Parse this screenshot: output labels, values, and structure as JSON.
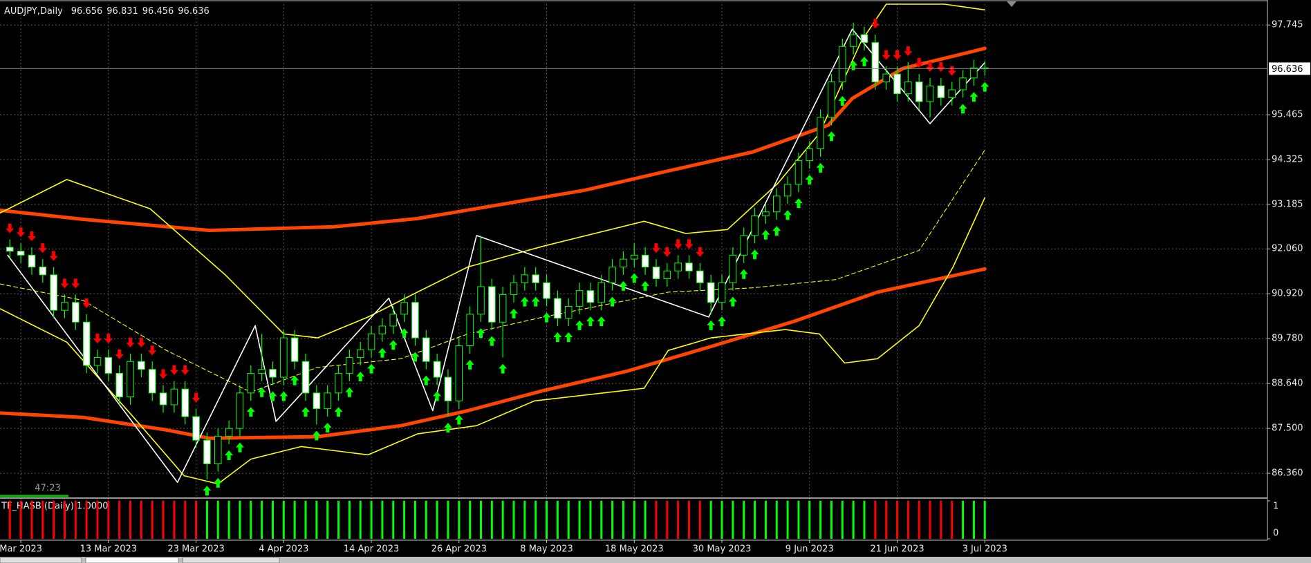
{
  "chart_data": {
    "type": "candlestick",
    "symbol": "AUDJPY,Daily",
    "timer": "47:23",
    "grid": true,
    "xlim": [
      -0.9,
      114.8
    ],
    "xticks": [
      {
        "value": 1,
        "label": "Mar 2023"
      },
      {
        "value": 9,
        "label": "13 Mar 2023"
      },
      {
        "value": 17,
        "label": "23 Mar 2023"
      },
      {
        "value": 25,
        "label": "4 Apr 2023"
      },
      {
        "value": 33,
        "label": "14 Apr 2023"
      },
      {
        "value": 41,
        "label": "26 Apr 2023"
      },
      {
        "value": 49,
        "label": "8 May 2023"
      },
      {
        "value": 57,
        "label": "18 May 2023"
      },
      {
        "value": 65,
        "label": "30 May 2023"
      },
      {
        "value": 73,
        "label": "9 Jun 2023"
      },
      {
        "value": 81,
        "label": "21 Jun 2023"
      },
      {
        "value": 89,
        "label": "3 Jul 2023"
      }
    ],
    "ylim": [
      85.766,
      98.275
    ],
    "yticks": [
      97.745,
      95.465,
      94.325,
      93.185,
      {
        "value": 92.06,
        "label": "92.060"
      },
      {
        "value": 90.92,
        "label": "90.920"
      },
      {
        "value": 89.78,
        "label": "89.780"
      },
      {
        "value": 88.64,
        "label": "88.640"
      },
      {
        "value": 87.5,
        "label": "87.500"
      },
      {
        "value": 86.36,
        "label": "86.360"
      }
    ],
    "candles": {
      "up_color": "#000000",
      "down_color": "#ffffff",
      "wick_color": "#00ff00",
      "open": [
        92.1,
        92.0,
        91.9,
        91.6,
        91.4,
        90.5,
        90.7,
        90.2,
        89.1,
        89.3,
        88.9,
        88.3,
        89.2,
        89.0,
        88.4,
        88.1,
        88.5,
        87.8,
        87.2,
        86.6,
        87.3,
        87.5,
        88.4,
        88.9,
        89.0,
        88.8,
        89.8,
        89.2,
        88.4,
        88.0,
        88.4,
        88.9,
        89.3,
        89.5,
        89.9,
        90.1,
        90.4,
        90.7,
        89.8,
        89.2,
        88.8,
        88.2,
        89.6,
        90.4,
        91.1,
        90.2,
        90.9,
        91.2,
        91.4,
        91.2,
        90.8,
        90.3,
        90.6,
        91.0,
        90.7,
        91.2,
        91.6,
        91.8,
        91.9,
        91.6,
        91.3,
        91.5,
        91.7,
        91.5,
        91.2,
        90.7,
        91.2,
        91.9,
        92.4,
        92.9,
        93.0,
        93.4,
        93.7,
        94.3,
        94.6,
        95.4,
        96.3,
        97.2,
        97.5,
        97.3,
        96.3,
        96.5,
        96.0,
        96.3,
        95.8,
        96.2,
        95.9,
        96.1,
        96.4,
        96.656
      ],
      "high": [
        92.3,
        92.2,
        92.1,
        91.8,
        91.6,
        90.9,
        90.9,
        90.4,
        89.5,
        89.5,
        89.1,
        89.4,
        89.4,
        89.2,
        88.6,
        88.7,
        88.7,
        88.0,
        87.4,
        87.5,
        87.7,
        88.6,
        89.1,
        89.9,
        89.2,
        90.0,
        90.0,
        89.4,
        88.6,
        88.6,
        89.1,
        89.5,
        89.7,
        90.1,
        90.3,
        90.6,
        90.9,
        90.9,
        90.0,
        89.4,
        89.0,
        89.8,
        90.6,
        92.4,
        91.3,
        91.1,
        91.4,
        91.6,
        91.6,
        91.4,
        91.0,
        90.8,
        91.2,
        91.2,
        91.4,
        91.8,
        92.0,
        92.2,
        92.1,
        91.8,
        91.7,
        91.9,
        91.9,
        91.7,
        91.4,
        91.4,
        92.1,
        92.6,
        93.1,
        93.2,
        93.6,
        93.9,
        94.5,
        94.8,
        95.6,
        96.5,
        97.4,
        97.8,
        97.7,
        97.5,
        96.7,
        96.7,
        96.8,
        96.5,
        96.4,
        96.4,
        96.3,
        96.6,
        96.86,
        96.831
      ],
      "low": [
        91.8,
        91.7,
        91.4,
        91.2,
        90.3,
        90.3,
        90.0,
        88.9,
        88.9,
        88.7,
        88.1,
        88.1,
        88.8,
        88.2,
        87.9,
        87.9,
        87.6,
        87.0,
        86.2,
        86.4,
        87.1,
        87.3,
        88.2,
        88.7,
        88.6,
        88.6,
        89.0,
        88.2,
        87.6,
        87.8,
        88.2,
        88.7,
        89.1,
        89.3,
        89.7,
        89.9,
        90.2,
        89.6,
        89.0,
        88.6,
        87.8,
        88.0,
        89.4,
        90.2,
        90.0,
        89.3,
        90.7,
        91.0,
        91.0,
        90.6,
        90.1,
        90.1,
        90.4,
        90.5,
        90.5,
        91.0,
        91.4,
        91.6,
        91.4,
        91.1,
        91.1,
        91.3,
        91.3,
        91.0,
        90.4,
        90.5,
        91.0,
        91.7,
        92.2,
        92.7,
        92.8,
        93.2,
        93.5,
        94.1,
        94.4,
        95.2,
        96.1,
        97.0,
        97.1,
        96.1,
        96.1,
        95.8,
        95.8,
        95.6,
        95.4,
        95.7,
        95.7,
        95.9,
        96.2,
        96.456
      ],
      "close": [
        92.0,
        91.9,
        91.6,
        91.4,
        90.5,
        90.7,
        90.2,
        89.1,
        89.3,
        88.9,
        88.3,
        89.2,
        89.0,
        88.4,
        88.1,
        88.5,
        87.8,
        87.2,
        86.6,
        87.3,
        87.5,
        88.4,
        88.9,
        89.0,
        88.8,
        89.8,
        89.2,
        88.4,
        88.0,
        88.4,
        88.9,
        89.3,
        89.5,
        89.9,
        90.1,
        90.4,
        90.7,
        89.8,
        89.2,
        88.8,
        88.2,
        89.6,
        90.4,
        91.1,
        90.2,
        90.9,
        91.2,
        91.4,
        91.2,
        90.8,
        90.3,
        90.6,
        91.0,
        90.7,
        91.2,
        91.6,
        91.8,
        91.9,
        91.6,
        91.3,
        91.5,
        91.7,
        91.5,
        91.2,
        90.7,
        91.2,
        91.9,
        92.4,
        92.9,
        93.0,
        93.4,
        93.7,
        94.3,
        94.6,
        95.4,
        96.3,
        97.2,
        97.5,
        97.3,
        96.3,
        96.5,
        96.0,
        96.3,
        95.8,
        96.2,
        95.9,
        96.1,
        96.4,
        96.656,
        96.636
      ]
    },
    "overlays": [
      {
        "type": "line",
        "style": "thick",
        "color": "#ff4500",
        "x": [
          -0.9,
          6.7,
          18.2,
          29.6,
          37.2,
          44.9,
          52.5,
          60.1,
          67.8,
          74.7,
          76.9,
          81.5,
          89
        ],
        "values": [
          93.04,
          92.81,
          92.53,
          92.62,
          92.83,
          93.19,
          93.55,
          94.04,
          94.52,
          95.2,
          95.88,
          96.64,
          97.15
        ]
      },
      {
        "type": "line",
        "style": "thick",
        "color": "#ff4500",
        "x": [
          -0.9,
          6.7,
          14.3,
          18.2,
          28.1,
          35.7,
          41.8,
          48.7,
          56.3,
          64.0,
          71.6,
          79.2,
          89
        ],
        "values": [
          87.89,
          87.78,
          87.46,
          87.25,
          87.29,
          87.57,
          87.95,
          88.46,
          88.95,
          89.58,
          90.22,
          90.96,
          91.55
        ]
      },
      {
        "type": "line",
        "style": "thin",
        "color": "#ffff00",
        "x": [
          -0.9,
          5.2,
          12.8,
          19.7,
          25.0,
          28.1,
          32.7,
          37.2,
          41.8,
          48.7,
          57.9,
          61.7,
          65.5,
          70.1,
          73.9,
          77.7,
          80.0,
          85.3,
          89
        ],
        "values": [
          92.97,
          93.82,
          93.08,
          91.39,
          89.9,
          89.8,
          90.33,
          90.96,
          91.6,
          92.13,
          92.76,
          92.45,
          92.55,
          93.72,
          94.99,
          97.32,
          98.275,
          98.275,
          98.13
        ]
      },
      {
        "type": "line",
        "style": "thin",
        "color": "#ffff00",
        "x": [
          -0.9,
          5.2,
          11.3,
          15.9,
          19.0,
          22.0,
          26.6,
          32.7,
          37.2,
          42.6,
          47.9,
          57.9,
          60.1,
          64.0,
          70.8,
          73.9,
          76.2,
          79.2,
          83.0,
          86.1,
          89
        ],
        "values": [
          90.54,
          89.69,
          87.78,
          86.3,
          86.09,
          86.72,
          87.04,
          86.83,
          87.36,
          87.57,
          88.2,
          88.52,
          89.48,
          89.8,
          90.01,
          89.9,
          89.16,
          89.27,
          90.11,
          91.6,
          93.36
        ]
      },
      {
        "type": "line",
        "style": "dashed",
        "color": "#ffff00",
        "x": [
          -0.9,
          6.7,
          14.3,
          22.0,
          28.1,
          35.7,
          41.8,
          48.7,
          60.1,
          67.8,
          75.4,
          83.0,
          89
        ],
        "values": [
          91.17,
          90.75,
          89.48,
          88.42,
          89.05,
          89.27,
          89.9,
          90.33,
          90.96,
          91.07,
          91.28,
          92.02,
          94.57
        ]
      },
      {
        "type": "line",
        "style": "thin",
        "color": "#ffffff",
        "x": [
          -0.2,
          15.3,
          22.4,
          24.3,
          34.6,
          38.6,
          42.6,
          63.8,
          76.9,
          84.0,
          89
        ],
        "values": [
          91.9,
          86.13,
          90.11,
          87.68,
          90.81,
          87.95,
          92.4,
          90.33,
          97.64,
          95.24,
          96.79
        ]
      }
    ],
    "indicator": {
      "type": "bar",
      "label": "TF_HASB (Daily) 1.0000",
      "ylim": [
        0,
        1
      ],
      "yticks": [
        1,
        0
      ],
      "values": [
        1,
        1,
        1,
        1,
        1,
        1,
        1,
        1,
        1,
        1,
        1,
        1,
        1,
        1,
        1,
        1,
        1,
        1,
        1,
        1,
        1,
        1,
        1,
        1,
        1,
        1,
        1,
        1,
        1,
        1,
        1,
        1,
        1,
        1,
        1,
        1,
        1,
        1,
        1,
        1,
        1,
        1,
        1,
        1,
        1,
        1,
        1,
        1,
        1,
        1,
        1,
        1,
        1,
        1,
        1,
        1,
        1,
        1,
        1,
        1,
        1,
        1,
        1,
        1,
        1,
        1,
        1,
        1,
        1,
        1,
        1,
        1,
        1,
        1,
        1,
        1,
        1,
        1,
        1,
        1,
        1,
        1,
        1,
        1,
        1,
        1,
        1,
        1,
        1,
        1
      ],
      "colors": [
        "#ff0000",
        "#ff0000",
        "#ff0000",
        "#ff0000",
        "#ff0000",
        "#ff0000",
        "#ff0000",
        "#ff0000",
        "#ff0000",
        "#ff0000",
        "#ff0000",
        "#ff0000",
        "#ff0000",
        "#ff0000",
        "#ff0000",
        "#ff0000",
        "#ff0000",
        "#ff0000",
        "#00ff00",
        "#00ff00",
        "#00ff00",
        "#00ff00",
        "#00ff00",
        "#00ff00",
        "#00ff00",
        "#00ff00",
        "#00ff00",
        "#00ff00",
        "#00ff00",
        "#00ff00",
        "#00ff00",
        "#00ff00",
        "#00ff00",
        "#00ff00",
        "#00ff00",
        "#00ff00",
        "#00ff00",
        "#00ff00",
        "#00ff00",
        "#00ff00",
        "#00ff00",
        "#00ff00",
        "#00ff00",
        "#00ff00",
        "#00ff00",
        "#00ff00",
        "#00ff00",
        "#00ff00",
        "#00ff00",
        "#00ff00",
        "#00ff00",
        "#00ff00",
        "#00ff00",
        "#00ff00",
        "#00ff00",
        "#00ff00",
        "#00ff00",
        "#00ff00",
        "#00ff00",
        "#ff0000",
        "#ff0000",
        "#ff0000",
        "#ff0000",
        "#ff0000",
        "#00ff00",
        "#00ff00",
        "#00ff00",
        "#00ff00",
        "#00ff00",
        "#00ff00",
        "#00ff00",
        "#00ff00",
        "#00ff00",
        "#00ff00",
        "#00ff00",
        "#00ff00",
        "#00ff00",
        "#00ff00",
        "#00ff00",
        "#ff0000",
        "#ff0000",
        "#ff0000",
        "#ff0000",
        "#ff0000",
        "#ff0000",
        "#ff0000",
        "#ff0000",
        "#00ff00",
        "#00ff00",
        "#00ff00"
      ]
    }
  }
}
